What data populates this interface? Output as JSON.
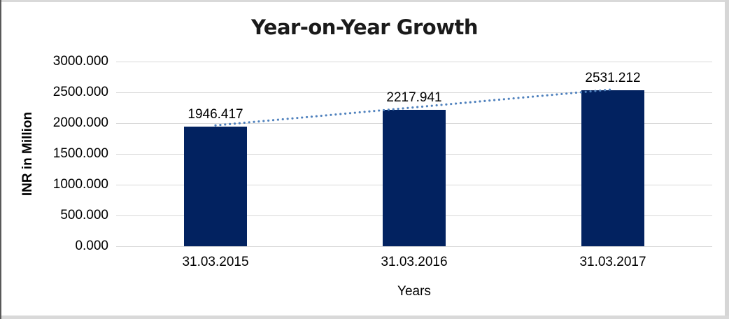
{
  "frame": {
    "background": "#ffffff",
    "border_color": "#d9d9d9",
    "left_edge_color": "#595959"
  },
  "chart_data": {
    "type": "bar",
    "title": "Year-on-Year Growth",
    "xlabel": "Years",
    "ylabel": "INR in Million",
    "categories": [
      "31.03.2015",
      "31.03.2016",
      "31.03.2017"
    ],
    "series": [
      {
        "name": "INR in Million",
        "values": [
          1946.417,
          2217.941,
          2531.212
        ],
        "color": "#022260"
      }
    ],
    "data_labels": [
      "1946.417",
      "2217.941",
      "2531.212"
    ],
    "ylim": [
      0,
      3000
    ],
    "ytick_step": 500,
    "ytick_labels": [
      "0.000",
      "500.000",
      "1000.000",
      "1500.000",
      "2000.000",
      "2500.000",
      "3000.000"
    ],
    "grid": true,
    "gridline_color": "#d9d9d9",
    "legend_position": "none",
    "trendline": {
      "type": "linear",
      "style": "dotted",
      "color": "#4f81bd"
    }
  }
}
